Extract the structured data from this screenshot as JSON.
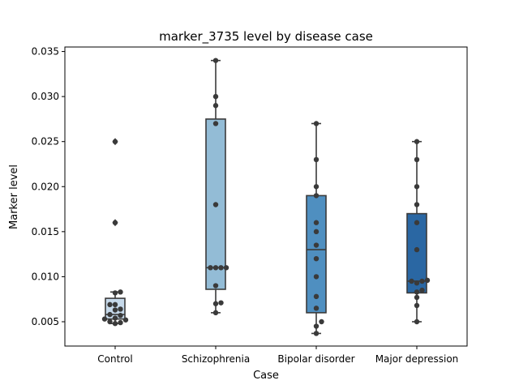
{
  "chart_data": {
    "type": "box",
    "title": "marker_3735 level by disease case",
    "xlabel": "Case",
    "ylabel": "Marker level",
    "ylim": [
      0.0023,
      0.0355
    ],
    "yticks": [
      0.005,
      0.01,
      0.015,
      0.02,
      0.025,
      0.03,
      0.035
    ],
    "ytick_labels": [
      "0.005",
      "0.010",
      "0.015",
      "0.020",
      "0.025",
      "0.030",
      "0.035"
    ],
    "categories": [
      "Control",
      "Schizophrenia",
      "Bipolar disorder",
      "Major depression"
    ],
    "colors": [
      "#c6d9ea",
      "#93bcd6",
      "#4f8fc0",
      "#2a67a3"
    ],
    "boxes": [
      {
        "whislo": 0.0048,
        "q1": 0.0053,
        "median": 0.0058,
        "q3": 0.0076,
        "whishi": 0.0083,
        "fliers": [
          0.016,
          0.025
        ]
      },
      {
        "whislo": 0.006,
        "q1": 0.0086,
        "median": 0.011,
        "q3": 0.0275,
        "whishi": 0.034,
        "fliers": []
      },
      {
        "whislo": 0.0037,
        "q1": 0.006,
        "median": 0.013,
        "q3": 0.019,
        "whishi": 0.027,
        "fliers": []
      },
      {
        "whislo": 0.005,
        "q1": 0.0082,
        "median": 0.0095,
        "q3": 0.017,
        "whishi": 0.025,
        "fliers": []
      }
    ],
    "points": [
      [
        0.0048,
        0.0049,
        0.005,
        0.0052,
        0.0053,
        0.0054,
        0.0057,
        0.0058,
        0.0063,
        0.0064,
        0.0069,
        0.0069,
        0.0082,
        0.0083,
        0.016,
        0.025
      ],
      [
        0.006,
        0.007,
        0.0071,
        0.009,
        0.011,
        0.011,
        0.011,
        0.011,
        0.018,
        0.027,
        0.029,
        0.03,
        0.034
      ],
      [
        0.0037,
        0.0045,
        0.005,
        0.0065,
        0.0078,
        0.01,
        0.012,
        0.0135,
        0.015,
        0.016,
        0.019,
        0.02,
        0.023,
        0.027
      ],
      [
        0.005,
        0.0068,
        0.0077,
        0.0083,
        0.0085,
        0.0093,
        0.0095,
        0.0095,
        0.0096,
        0.013,
        0.016,
        0.018,
        0.02,
        0.023,
        0.025
      ]
    ]
  }
}
